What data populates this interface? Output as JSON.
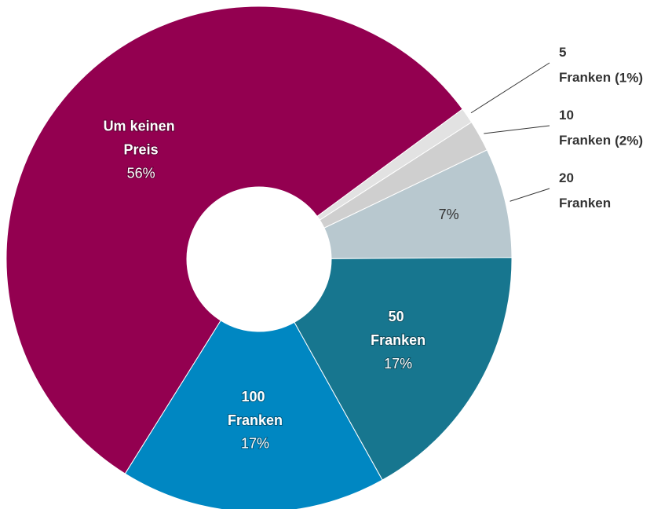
{
  "chart_data": {
    "type": "donut",
    "categories": [
      "Um keinen Preis",
      "5 Franken",
      "10 Franken",
      "20 Franken",
      "50 Franken",
      "100 Franken"
    ],
    "values": [
      56,
      1,
      2,
      7,
      17,
      17
    ],
    "value_labels": [
      "56%",
      "(1%)",
      "(2%)",
      "7%",
      "17%",
      "17%"
    ],
    "colors": [
      "#930050",
      "#e2e2e2",
      "#cfcfcf",
      "#b8c8cf",
      "#17768f",
      "#0087c2"
    ]
  }
}
